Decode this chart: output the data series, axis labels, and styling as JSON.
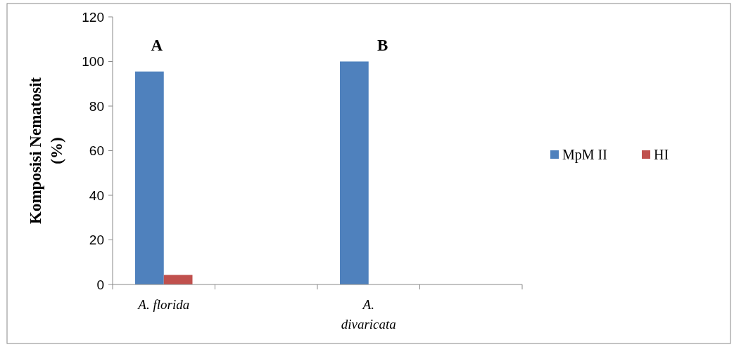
{
  "chart_data": {
    "type": "bar",
    "ylabel": "Komposisi Nematosit (%)",
    "categories": [
      "A. florida",
      null,
      "A. divaricata",
      null
    ],
    "series": [
      {
        "name": "MpM II",
        "color": "#4f81bd",
        "values": [
          95.5,
          null,
          100,
          null
        ]
      },
      {
        "name": "HI",
        "color": "#c0504d",
        "values": [
          4.3,
          null,
          0,
          null
        ]
      }
    ],
    "ylim": [
      0,
      120
    ],
    "yticks": [
      0,
      20,
      40,
      60,
      80,
      100,
      120
    ],
    "legend": "right",
    "annotations": [
      "A",
      "B"
    ]
  }
}
